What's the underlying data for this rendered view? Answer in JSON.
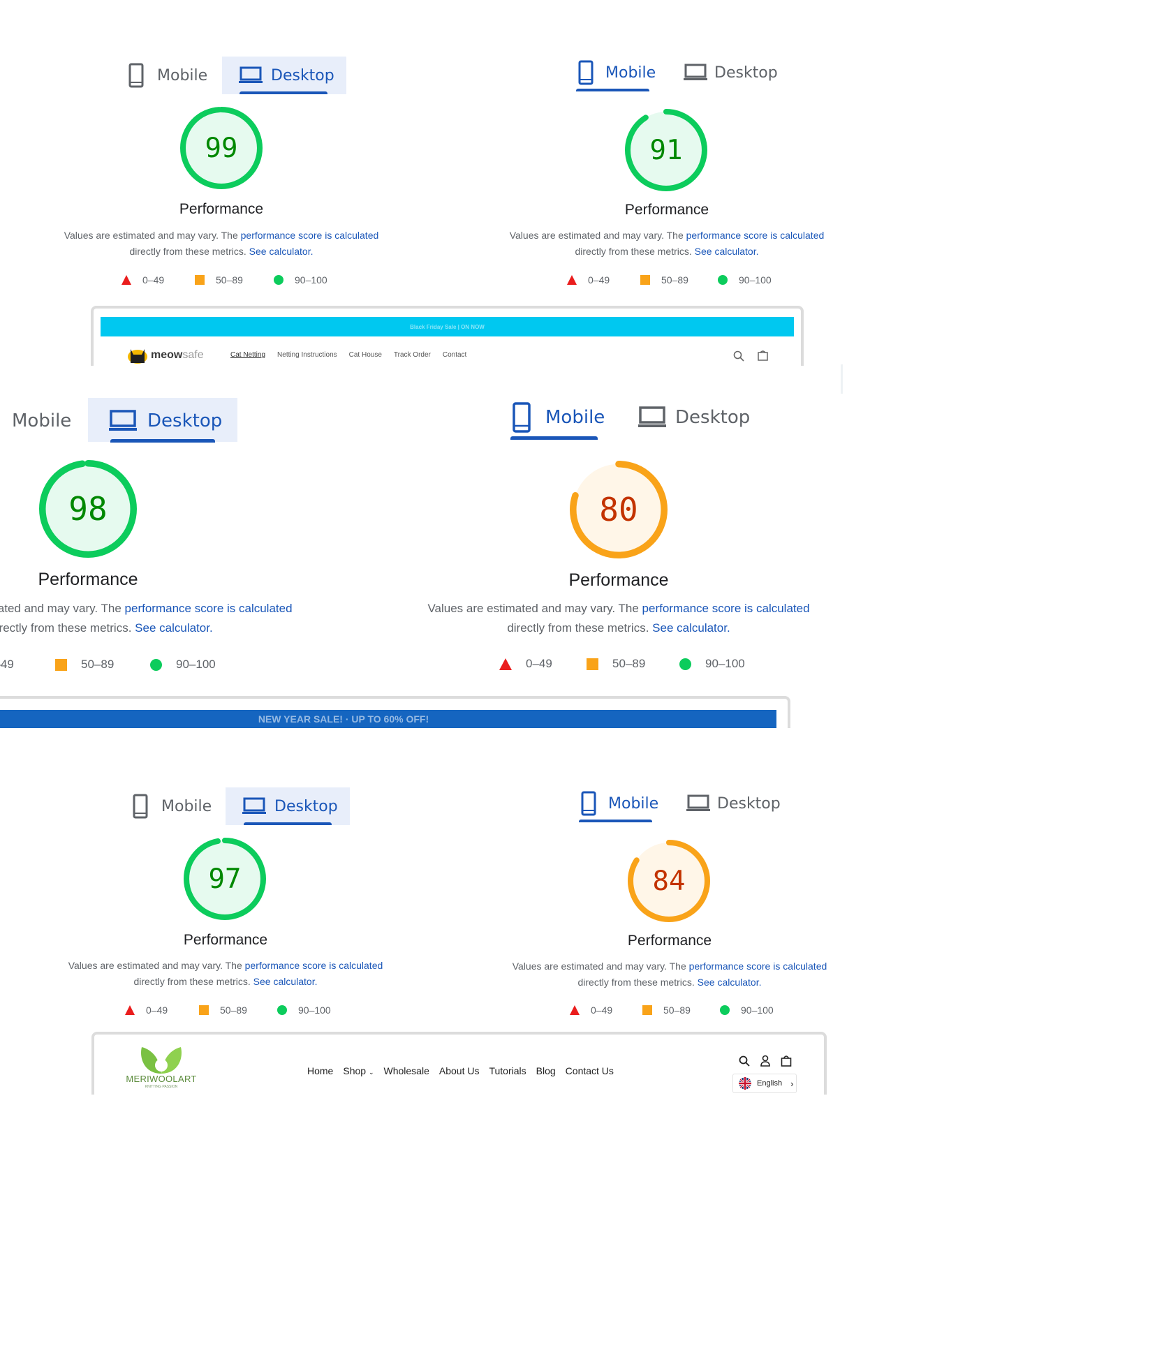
{
  "common": {
    "tab_mobile": "Mobile",
    "tab_desktop": "Desktop",
    "perf_label": "Performance",
    "desc_1": "Values are estimated and may vary. The ",
    "desc_link_1": "performance score is calculated",
    "desc_2": "directly from these metrics. ",
    "desc_link_2": "See calculator.",
    "legend_fail": "0–49",
    "legend_avg": "50–89",
    "legend_pass": "90–100"
  },
  "reports": [
    {
      "device": "Desktop",
      "score": 99,
      "rating": "pass"
    },
    {
      "device": "Mobile",
      "score": 91,
      "rating": "pass"
    },
    {
      "device": "Desktop",
      "score": 98,
      "rating": "pass"
    },
    {
      "device": "Mobile",
      "score": 80,
      "rating": "average"
    },
    {
      "device": "Desktop",
      "score": 97,
      "rating": "pass"
    },
    {
      "device": "Mobile",
      "score": 84,
      "rating": "average"
    }
  ],
  "colors": {
    "pass": "#0ccc5c",
    "pass_bg": "#e6faef",
    "pass_text": "#008800",
    "average": "#f9a319",
    "average_bg": "#fff6e8",
    "average_text": "#c33300",
    "fail": "#ea1d1d",
    "link": "#1a56b8",
    "tab_active_bg": "#e8eefa",
    "cyan_bar": "#00c8f0",
    "blue_bar": "#1565c0"
  },
  "preview_meowsafe": {
    "banner": "Black Friday Sale | ON NOW",
    "logo_bold": "meow",
    "logo_light": "safe",
    "nav": [
      "Cat Netting",
      "Netting Instructions",
      "Cat House",
      "Track Order",
      "Contact"
    ]
  },
  "preview_sale": {
    "banner": "NEW YEAR SALE! · UP TO 60% OFF!"
  },
  "preview_meriwool": {
    "logo": "MERIWOOLART",
    "tagline": "KNITTING PASSION",
    "nav": [
      "Home",
      "Shop",
      "Wholesale",
      "About Us",
      "Tutorials",
      "Blog",
      "Contact Us"
    ],
    "language": "English"
  }
}
